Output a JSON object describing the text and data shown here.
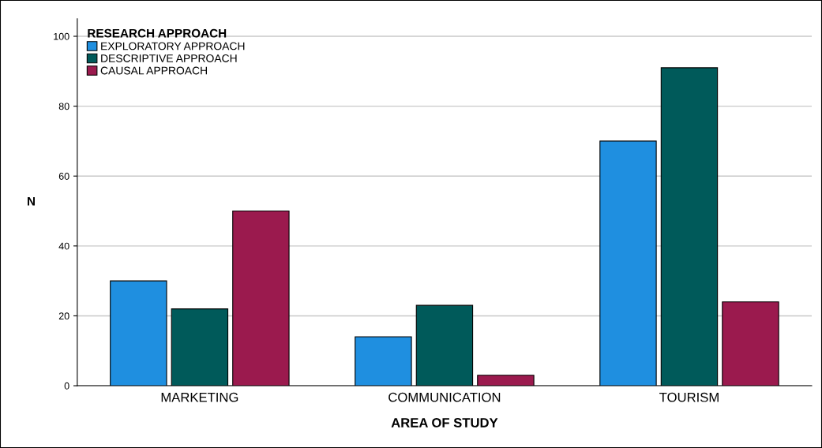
{
  "chart_data": {
    "type": "bar",
    "xlabel": "AREA OF STUDY",
    "ylabel": "N",
    "legend_title": "RESEARCH APPROACH",
    "categories": [
      "MARKETING",
      "COMMUNICATION",
      "TOURISM"
    ],
    "series": [
      {
        "name": "EXPLORATORY APPROACH",
        "color": "#1f8fe0",
        "values": [
          30,
          14,
          70
        ]
      },
      {
        "name": "DESCRIPTIVE APPROACH",
        "color": "#005a5a",
        "values": [
          22,
          23,
          91
        ]
      },
      {
        "name": "CAUSAL APPROACH",
        "color": "#9b1a4e",
        "values": [
          50,
          3,
          24
        ]
      }
    ],
    "ylim": [
      0,
      105
    ],
    "yticks": [
      0,
      20,
      40,
      60,
      80,
      100
    ],
    "grid": "y",
    "legend": "top left"
  }
}
